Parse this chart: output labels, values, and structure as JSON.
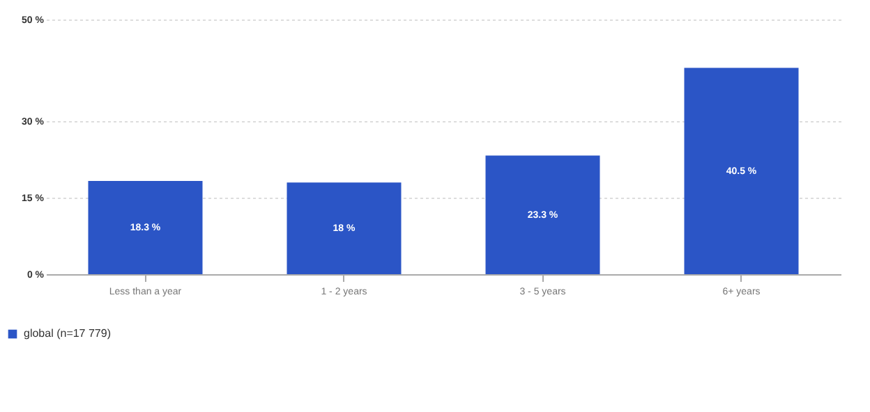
{
  "chart_data": {
    "type": "bar",
    "categories": [
      "Less than a year",
      "1 - 2 years",
      "3 - 5 years",
      "6+ years"
    ],
    "series": [
      {
        "name": "global (n=17 779)",
        "color": "#2b55c6",
        "values": [
          18.3,
          18,
          23.3,
          40.5
        ],
        "value_labels": [
          "18.3 %",
          "18 %",
          "23.3 %",
          "40.5 %"
        ]
      }
    ],
    "ylim": [
      0,
      50
    ],
    "yticks": [
      {
        "value": 0,
        "label": "0 %"
      },
      {
        "value": 15,
        "label": "15 %"
      },
      {
        "value": 30,
        "label": "30 %"
      },
      {
        "value": 50,
        "label": "50 %"
      }
    ],
    "grid": "y",
    "legend": "bottom left"
  }
}
